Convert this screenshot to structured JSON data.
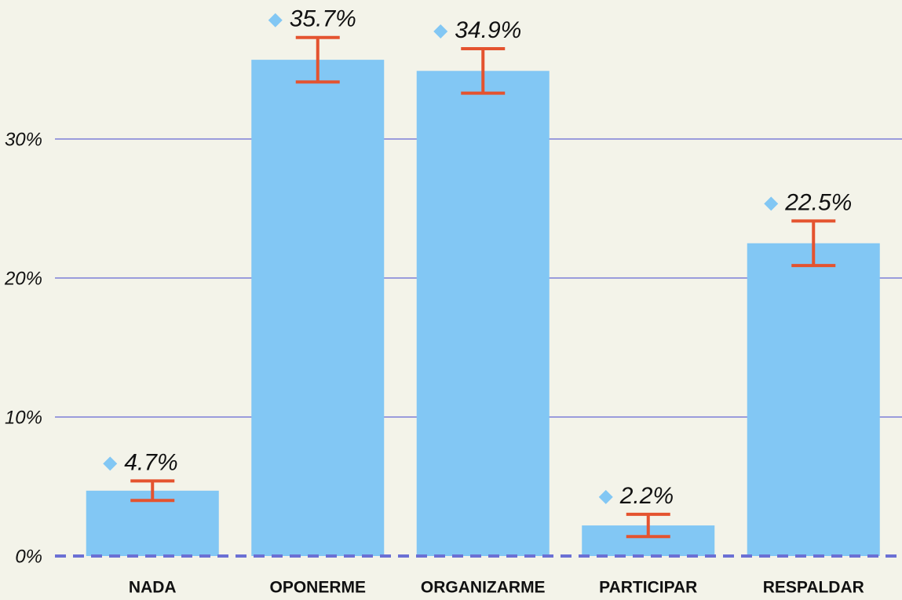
{
  "chart_data": {
    "type": "bar",
    "categories": [
      "NADA",
      "OPONERME",
      "ORGANIZARME",
      "PARTICIPAR",
      "RESPALDAR"
    ],
    "values": [
      4.7,
      35.7,
      34.9,
      2.2,
      22.5
    ],
    "value_labels": [
      "4.7%",
      "35.7%",
      "34.9%",
      "2.2%",
      "22.5%"
    ],
    "errors": [
      0.7,
      1.6,
      1.6,
      0.8,
      1.6
    ],
    "color": "#82c7f4",
    "error_color": "#e4532f",
    "ylim": [
      0,
      40
    ],
    "yticks": [
      {
        "value": 0,
        "label": "0%"
      },
      {
        "value": 10,
        "label": "10%"
      },
      {
        "value": 20,
        "label": "20%"
      },
      {
        "value": 30,
        "label": "30%"
      }
    ],
    "grid": true
  }
}
